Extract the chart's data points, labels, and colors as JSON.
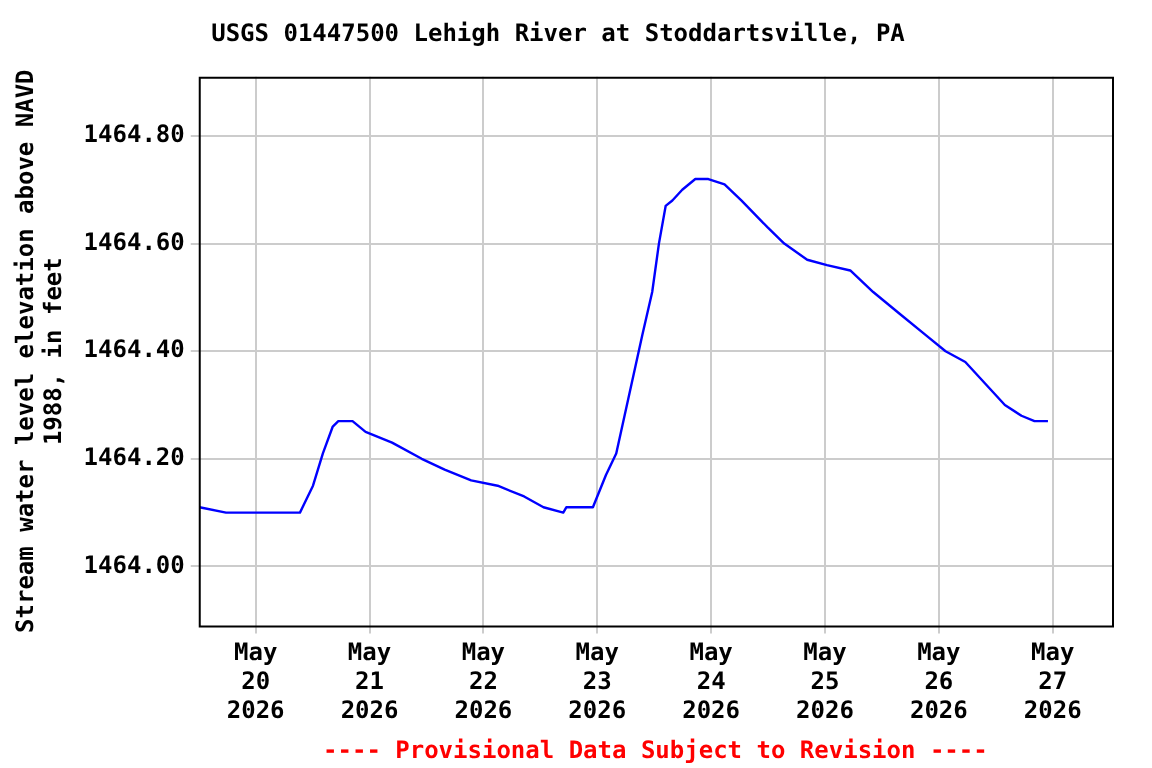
{
  "chart_data": {
    "type": "line",
    "title": "USGS 01447500 Lehigh River at Stoddartsville, PA",
    "ylabel": "Stream water level elevation above NAVD 1988, in feet",
    "x": [
      "2026-05-19T12:10",
      "2026-05-19T17:45",
      "2026-05-20T09:20",
      "2026-05-20T12:05",
      "2026-05-20T14:10",
      "2026-05-20T16:15",
      "2026-05-20T17:25",
      "2026-05-20T20:25",
      "2026-05-20T23:10",
      "2026-05-21T04:45",
      "2026-05-21T11:00",
      "2026-05-21T15:50",
      "2026-05-21T21:25",
      "2026-05-22T03:00",
      "2026-05-22T08:35",
      "2026-05-22T12:40",
      "2026-05-22T16:50",
      "2026-05-22T17:30",
      "2026-05-22T23:05",
      "2026-05-23T01:50",
      "2026-05-23T04:00",
      "2026-05-23T06:45",
      "2026-05-23T09:30",
      "2026-05-23T11:35",
      "2026-05-23T13:00",
      "2026-05-23T14:25",
      "2026-05-23T15:50",
      "2026-05-23T17:55",
      "2026-05-23T20:40",
      "2026-05-23T23:25",
      "2026-05-24T02:50",
      "2026-05-24T06:25",
      "2026-05-24T11:55",
      "2026-05-24T15:25",
      "2026-05-24T20:15",
      "2026-05-25T00:25",
      "2026-05-25T05:20",
      "2026-05-25T10:10",
      "2026-05-25T15:40",
      "2026-05-25T21:15",
      "2026-05-26T01:25",
      "2026-05-26T05:35",
      "2026-05-26T09:45",
      "2026-05-26T13:55",
      "2026-05-26T17:25",
      "2026-05-26T20:10",
      "2026-05-26T23:00"
    ],
    "series": [
      {
        "color": "#0000ff",
        "values": [
          1464.11,
          1464.1,
          1464.1,
          1464.15,
          1464.21,
          1464.26,
          1464.27,
          1464.27,
          1464.25,
          1464.23,
          1464.2,
          1464.18,
          1464.16,
          1464.15,
          1464.13,
          1464.11,
          1464.1,
          1464.11,
          1464.11,
          1464.17,
          1464.21,
          1464.32,
          1464.43,
          1464.51,
          1464.6,
          1464.67,
          1464.68,
          1464.7,
          1464.72,
          1464.72,
          1464.71,
          1464.68,
          1464.63,
          1464.6,
          1464.57,
          1464.56,
          1464.55,
          1464.51,
          1464.47,
          1464.43,
          1464.4,
          1464.38,
          1464.34,
          1464.3,
          1464.28,
          1464.27,
          1464.27
        ]
      }
    ],
    "xlim": [
      "2026-05-19T12:00",
      "2026-05-27T12:30"
    ],
    "xticks": [
      {
        "value": "2026-05-20",
        "label": "May 20 2026"
      },
      {
        "value": "2026-05-21",
        "label": "May 21 2026"
      },
      {
        "value": "2026-05-22",
        "label": "May 22 2026"
      },
      {
        "value": "2026-05-23",
        "label": "May 23 2026"
      },
      {
        "value": "2026-05-24",
        "label": "May 24 2026"
      },
      {
        "value": "2026-05-25",
        "label": "May 25 2026"
      },
      {
        "value": "2026-05-26",
        "label": "May 26 2026"
      },
      {
        "value": "2026-05-27",
        "label": "May 27 2026"
      }
    ],
    "ylim": [
      1463.89,
      1464.91
    ],
    "yticks": [
      {
        "value": 1464.0,
        "label": "1464.00"
      },
      {
        "value": 1464.2,
        "label": "1464.20"
      },
      {
        "value": 1464.4,
        "label": "1464.40"
      },
      {
        "value": 1464.6,
        "label": "1464.60"
      },
      {
        "value": 1464.8,
        "label": "1464.80"
      }
    ],
    "grid": true,
    "annotations": [
      "---- Provisional Data Subject to Revision ----"
    ]
  }
}
